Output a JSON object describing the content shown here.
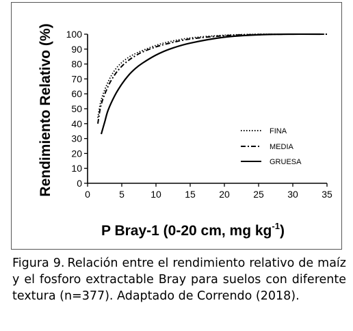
{
  "chart_data": {
    "type": "line",
    "title": "",
    "xlabel": "P Bray-1 (0-20 cm, mg kg",
    "xlabel_sup": "-1",
    "xlabel_tail": ")",
    "ylabel": "Rendimiento Relativo (%)",
    "xlim": [
      0,
      35
    ],
    "ylim": [
      0,
      100
    ],
    "xticks": [
      0,
      5,
      10,
      15,
      20,
      25,
      30,
      35
    ],
    "yticks": [
      0,
      10,
      20,
      30,
      40,
      50,
      60,
      70,
      80,
      90,
      100
    ],
    "grid": false,
    "legend_position": "center-right",
    "series": [
      {
        "name": "FINA",
        "style": "dotted",
        "x": [
          1.5,
          2,
          3,
          4,
          5,
          6,
          7,
          8,
          10,
          12,
          15,
          20,
          25,
          30,
          35
        ],
        "y": [
          44,
          56,
          68,
          76,
          81,
          84.5,
          87,
          89,
          92.5,
          95,
          97.5,
          99.3,
          100,
          100,
          100
        ]
      },
      {
        "name": "MEDIA",
        "style": "dashed",
        "x": [
          1.5,
          2,
          3,
          4,
          5,
          6,
          7,
          8,
          10,
          12,
          15,
          20,
          25,
          30,
          35
        ],
        "y": [
          40,
          53,
          65,
          73,
          78.5,
          82.5,
          85.5,
          88,
          91.5,
          94,
          96.8,
          99,
          99.8,
          100,
          100
        ]
      },
      {
        "name": "GRUESA",
        "style": "solid",
        "x": [
          2,
          2.5,
          3,
          4,
          5,
          6,
          7,
          8,
          10,
          12,
          15,
          20,
          25,
          30,
          34
        ],
        "y": [
          33,
          41,
          49,
          59,
          66.5,
          72.5,
          77,
          80.5,
          86,
          90,
          94,
          98,
          99.6,
          100,
          100
        ]
      }
    ]
  },
  "caption": {
    "label": "Figura 9.",
    "text": "Relación entre el rendimiento relativo de maíz y el fosforo extractable Bray para suelos con diferente textura (n=377). Adaptado de Correndo (2018)."
  }
}
